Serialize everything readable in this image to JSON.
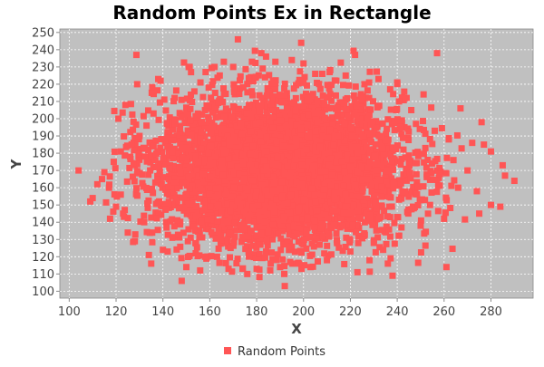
{
  "chart_data": {
    "type": "scatter",
    "title": "Random Points Ex in Rectangle",
    "xlabel": "X",
    "ylabel": "Y",
    "xlim": [
      96,
      298
    ],
    "ylim": [
      96,
      252
    ],
    "x_ticks": [
      100,
      120,
      140,
      160,
      180,
      200,
      220,
      240,
      260,
      280
    ],
    "y_ticks": [
      100,
      110,
      120,
      130,
      140,
      150,
      160,
      170,
      180,
      190,
      200,
      210,
      220,
      230,
      240,
      250
    ],
    "grid": true,
    "legend_position": "bottom",
    "plot_background": "#c0c0c0",
    "series": [
      {
        "name": "Random Points",
        "color": "#ff5555",
        "marker": "square",
        "distribution": {
          "description": "dense elliptical cloud of random points",
          "center_x": 190,
          "center_y": 170,
          "approx_count": 5000
        },
        "points": [
          [
            104,
            170
          ],
          [
            109,
            152
          ],
          [
            110,
            154
          ],
          [
            112,
            162
          ],
          [
            114,
            165
          ],
          [
            115,
            169
          ],
          [
            117,
            160
          ],
          [
            119,
            175
          ],
          [
            120,
            149
          ],
          [
            121,
            200
          ],
          [
            122,
            156
          ],
          [
            124,
            208
          ],
          [
            125,
            134
          ],
          [
            123,
            145
          ],
          [
            126,
            178
          ],
          [
            128,
            129
          ],
          [
            129,
            220
          ],
          [
            130,
            190
          ],
          [
            132,
            140
          ],
          [
            133,
            196
          ],
          [
            134,
            121
          ],
          [
            135,
            116
          ],
          [
            136,
            184
          ],
          [
            138,
            223
          ],
          [
            139,
            222
          ],
          [
            140,
            124
          ],
          [
            142,
            123
          ],
          [
            144,
            131
          ],
          [
            145,
            212
          ],
          [
            148,
            106
          ],
          [
            150,
            114
          ],
          [
            151,
            230
          ],
          [
            152,
            227
          ],
          [
            154,
            122
          ],
          [
            156,
            221
          ],
          [
            158,
            120
          ],
          [
            162,
            230
          ],
          [
            166,
            233
          ],
          [
            168,
            113
          ],
          [
            170,
            230
          ],
          [
            172,
            246
          ],
          [
            174,
            113
          ],
          [
            176,
            110
          ],
          [
            178,
            233
          ],
          [
            180,
            113
          ],
          [
            182,
            238
          ],
          [
            184,
            236
          ],
          [
            186,
            116
          ],
          [
            188,
            233
          ],
          [
            190,
            114
          ],
          [
            192,
            103
          ],
          [
            195,
            234
          ],
          [
            198,
            116
          ],
          [
            199,
            244
          ],
          [
            200,
            232
          ],
          [
            203,
            114
          ],
          [
            205,
            226
          ],
          [
            208,
            226
          ],
          [
            210,
            118
          ],
          [
            214,
            222
          ],
          [
            218,
            225
          ],
          [
            220,
            123
          ],
          [
            222,
            237
          ],
          [
            223,
            111
          ],
          [
            226,
            220
          ],
          [
            228,
            212
          ],
          [
            230,
            128
          ],
          [
            232,
            223
          ],
          [
            234,
            124
          ],
          [
            236,
            116
          ],
          [
            237,
            217
          ],
          [
            238,
            109
          ],
          [
            240,
            221
          ],
          [
            242,
            199
          ],
          [
            244,
            212
          ],
          [
            246,
            205
          ],
          [
            248,
            197
          ],
          [
            250,
            138
          ],
          [
            252,
            183
          ],
          [
            254,
            150
          ],
          [
            256,
            193
          ],
          [
            257,
            238
          ],
          [
            258,
            168
          ],
          [
            260,
            142
          ],
          [
            261,
            114
          ],
          [
            262,
            188
          ],
          [
            264,
            176
          ],
          [
            266,
            160
          ],
          [
            267,
            206
          ],
          [
            270,
            170
          ],
          [
            272,
            186
          ],
          [
            274,
            158
          ],
          [
            275,
            145
          ],
          [
            276,
            198
          ],
          [
            277,
            185
          ],
          [
            280,
            181
          ],
          [
            280,
            150
          ],
          [
            284,
            149
          ],
          [
            285,
            173
          ],
          [
            286,
            167
          ],
          [
            290,
            164
          ]
        ]
      }
    ]
  }
}
